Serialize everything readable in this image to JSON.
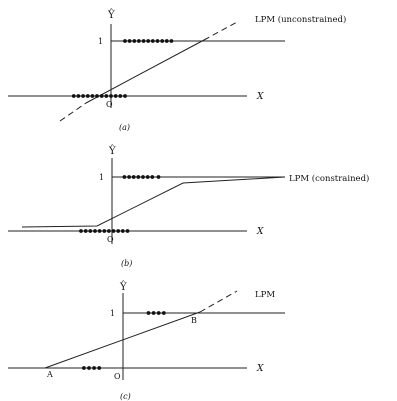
{
  "chart_data": [
    {
      "type": "line",
      "panel_label": "(a)",
      "y_axis_label": "Ŷ",
      "x_axis_label": "X",
      "origin_label": "O",
      "y_tick_one": "1",
      "line_label": "LPM (unconstrained)",
      "line_style": "solid with dashed extensions",
      "x_range": [
        -2.6,
        4.4
      ],
      "y_range": [
        -0.9,
        1.25
      ],
      "observations_at_zero_x": [
        -2.4,
        -2.1,
        -1.8,
        -1.5,
        -1.2,
        -0.9,
        -0.6,
        -0.3,
        0.0,
        0.3,
        0.6,
        0.9
      ],
      "observations_at_one_x": [
        0.9,
        1.2,
        1.5,
        1.8,
        2.1,
        2.4,
        2.7,
        3.0,
        3.3,
        3.6,
        3.9
      ],
      "fitted_line": {
        "solid": [
          [
            -0.6,
            -0.03
          ],
          [
            2.0,
            1.01
          ]
        ],
        "dashed_lower": [
          [
            -1.3,
            -0.35
          ],
          [
            -0.6,
            -0.03
          ]
        ],
        "dashed_upper": [
          [
            2.0,
            1.01
          ],
          [
            2.8,
            1.3
          ]
        ]
      }
    },
    {
      "type": "line",
      "panel_label": "(b)",
      "y_axis_label": "Ŷ",
      "x_axis_label": "X",
      "origin_label": "O",
      "y_tick_one": "1",
      "line_label": "LPM (constrained)",
      "x_range": [
        -2.6,
        4.4
      ],
      "y_range": [
        -0.3,
        1.25
      ],
      "observations_at_zero_x": [
        -2.0,
        -1.7,
        -1.4,
        -1.1,
        -0.8,
        -0.5,
        -0.2,
        0.1,
        0.4,
        0.7,
        1.0
      ],
      "observations_at_one_x": [
        0.8,
        1.1,
        1.4,
        1.7,
        2.0,
        2.3,
        2.6,
        3.0
      ],
      "fitted_line": [
        [
          -2.5,
          0.08
        ],
        [
          -0.5,
          0.08
        ],
        [
          1.7,
          0.9
        ],
        [
          4.4,
          1.0
        ]
      ]
    },
    {
      "type": "line",
      "panel_label": "(c)",
      "y_axis_label": "Ŷ",
      "x_axis_label": "X",
      "origin_label": "O",
      "y_tick_one": "1",
      "line_label": "LPM",
      "point_labels": [
        "A",
        "B"
      ],
      "x_range": [
        -2.6,
        4.4
      ],
      "y_range": [
        -0.3,
        1.25
      ],
      "observations_at_zero_x": [
        -2.3,
        -2.0,
        -1.7,
        -1.4
      ],
      "observations_at_one_x": [
        1.5,
        1.8,
        2.1,
        2.4
      ],
      "fitted_line": {
        "solid": [
          [
            -1.8,
            0.0
          ],
          [
            2.1,
            0.98
          ]
        ],
        "dashed_upper": [
          [
            2.1,
            0.98
          ],
          [
            3.0,
            1.3
          ]
        ]
      }
    }
  ]
}
